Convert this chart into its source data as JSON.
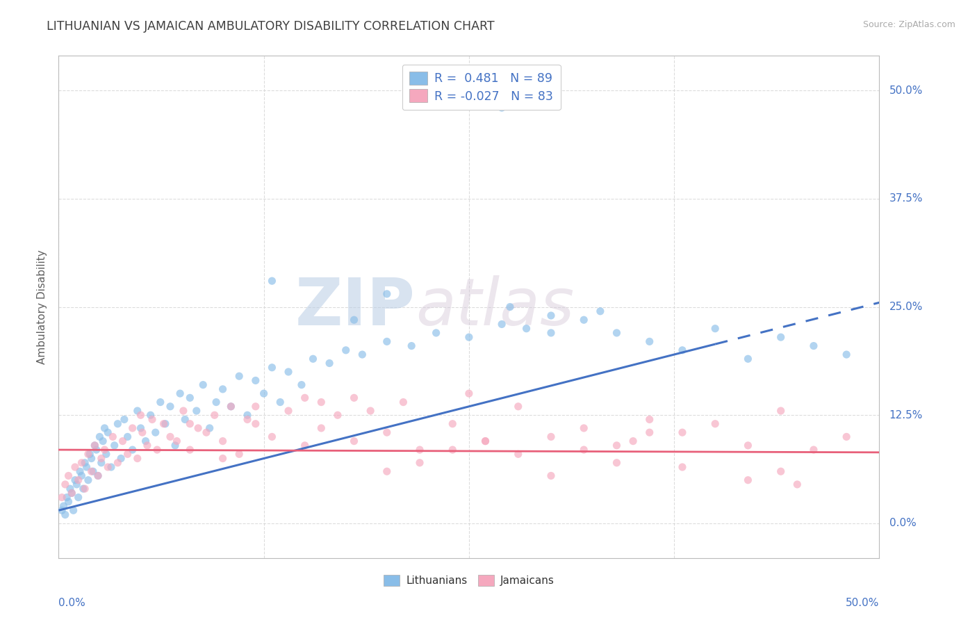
{
  "title": "LITHUANIAN VS JAMAICAN AMBULATORY DISABILITY CORRELATION CHART",
  "source": "Source: ZipAtlas.com",
  "ylabel": "Ambulatory Disability",
  "xlim": [
    0.0,
    50.0
  ],
  "ylim": [
    -4.0,
    54.0
  ],
  "ytick_positions": [
    0.0,
    12.5,
    25.0,
    37.5,
    50.0
  ],
  "ytick_labels": [
    "0.0%",
    "12.5%",
    "25.0%",
    "37.5%",
    "50.0%"
  ],
  "color_blue": "#89bde8",
  "color_pink": "#f5a8be",
  "color_blue_line": "#4472c4",
  "color_pink_line": "#e8607a",
  "color_grid": "#d9d9d9",
  "color_title": "#404040",
  "color_axis_val": "#4472c4",
  "color_ylabel": "#606060",
  "color_source": "#aaaaaa",
  "lith_x": [
    0.2,
    0.3,
    0.4,
    0.5,
    0.6,
    0.7,
    0.8,
    0.9,
    1.0,
    1.1,
    1.2,
    1.3,
    1.4,
    1.5,
    1.6,
    1.7,
    1.8,
    1.9,
    2.0,
    2.1,
    2.2,
    2.3,
    2.4,
    2.5,
    2.6,
    2.7,
    2.8,
    2.9,
    3.0,
    3.2,
    3.4,
    3.6,
    3.8,
    4.0,
    4.2,
    4.5,
    4.8,
    5.0,
    5.3,
    5.6,
    5.9,
    6.2,
    6.5,
    6.8,
    7.1,
    7.4,
    7.7,
    8.0,
    8.4,
    8.8,
    9.2,
    9.6,
    10.0,
    10.5,
    11.0,
    11.5,
    12.0,
    12.5,
    13.0,
    13.5,
    14.0,
    14.8,
    15.5,
    16.5,
    17.5,
    18.5,
    20.0,
    21.5,
    23.0,
    25.0,
    27.0,
    28.5,
    30.0,
    32.0,
    34.0,
    36.0,
    38.0,
    40.0,
    42.0,
    44.0,
    46.0,
    48.0,
    27.0,
    13.0,
    20.0,
    27.5,
    33.0,
    18.0,
    30.0
  ],
  "lith_y": [
    1.5,
    2.0,
    1.0,
    3.0,
    2.5,
    4.0,
    3.5,
    1.5,
    5.0,
    4.5,
    3.0,
    6.0,
    5.5,
    4.0,
    7.0,
    6.5,
    5.0,
    8.0,
    7.5,
    6.0,
    9.0,
    8.5,
    5.5,
    10.0,
    7.0,
    9.5,
    11.0,
    8.0,
    10.5,
    6.5,
    9.0,
    11.5,
    7.5,
    12.0,
    10.0,
    8.5,
    13.0,
    11.0,
    9.5,
    12.5,
    10.5,
    14.0,
    11.5,
    13.5,
    9.0,
    15.0,
    12.0,
    14.5,
    13.0,
    16.0,
    11.0,
    14.0,
    15.5,
    13.5,
    17.0,
    12.5,
    16.5,
    15.0,
    18.0,
    14.0,
    17.5,
    16.0,
    19.0,
    18.5,
    20.0,
    19.5,
    21.0,
    20.5,
    22.0,
    21.5,
    23.0,
    22.5,
    24.0,
    23.5,
    22.0,
    21.0,
    20.0,
    22.5,
    19.0,
    21.5,
    20.5,
    19.5,
    48.0,
    28.0,
    26.5,
    25.0,
    24.5,
    23.5,
    22.0
  ],
  "jam_x": [
    0.2,
    0.4,
    0.6,
    0.8,
    1.0,
    1.2,
    1.4,
    1.6,
    1.8,
    2.0,
    2.2,
    2.4,
    2.6,
    2.8,
    3.0,
    3.3,
    3.6,
    3.9,
    4.2,
    4.5,
    4.8,
    5.1,
    5.4,
    5.7,
    6.0,
    6.4,
    6.8,
    7.2,
    7.6,
    8.0,
    8.5,
    9.0,
    9.5,
    10.0,
    10.5,
    11.0,
    11.5,
    12.0,
    13.0,
    14.0,
    15.0,
    16.0,
    17.0,
    18.0,
    19.0,
    20.0,
    21.0,
    22.0,
    24.0,
    26.0,
    28.0,
    30.0,
    32.0,
    34.0,
    36.0,
    38.0,
    40.0,
    42.0,
    44.0,
    46.0,
    48.0,
    25.0,
    35.0,
    45.0,
    15.0,
    20.0,
    30.0,
    10.0,
    5.0,
    28.0,
    38.0,
    18.0,
    22.0,
    32.0,
    42.0,
    12.0,
    8.0,
    26.0,
    34.0,
    44.0,
    16.0,
    24.0,
    36.0
  ],
  "jam_y": [
    3.0,
    4.5,
    5.5,
    3.5,
    6.5,
    5.0,
    7.0,
    4.0,
    8.0,
    6.0,
    9.0,
    5.5,
    7.5,
    8.5,
    6.5,
    10.0,
    7.0,
    9.5,
    8.0,
    11.0,
    7.5,
    10.5,
    9.0,
    12.0,
    8.5,
    11.5,
    10.0,
    9.5,
    13.0,
    8.5,
    11.0,
    10.5,
    12.5,
    9.5,
    13.5,
    8.0,
    12.0,
    11.5,
    10.0,
    13.0,
    9.0,
    11.0,
    12.5,
    9.5,
    13.0,
    10.5,
    14.0,
    8.5,
    11.5,
    9.5,
    13.5,
    10.0,
    11.0,
    9.0,
    12.0,
    10.5,
    11.5,
    9.0,
    13.0,
    8.5,
    10.0,
    15.0,
    9.5,
    4.5,
    14.5,
    6.0,
    5.5,
    7.5,
    12.5,
    8.0,
    6.5,
    14.5,
    7.0,
    8.5,
    5.0,
    13.5,
    11.5,
    9.5,
    7.0,
    6.0,
    14.0,
    8.5,
    10.5
  ],
  "lith_line_x0": 0.0,
  "lith_line_y0": 1.5,
  "lith_line_x1": 50.0,
  "lith_line_y1": 25.5,
  "lith_solid_end": 40.0,
  "jam_line_x0": 0.0,
  "jam_line_y0": 8.5,
  "jam_line_x1": 50.0,
  "jam_line_y1": 8.2
}
